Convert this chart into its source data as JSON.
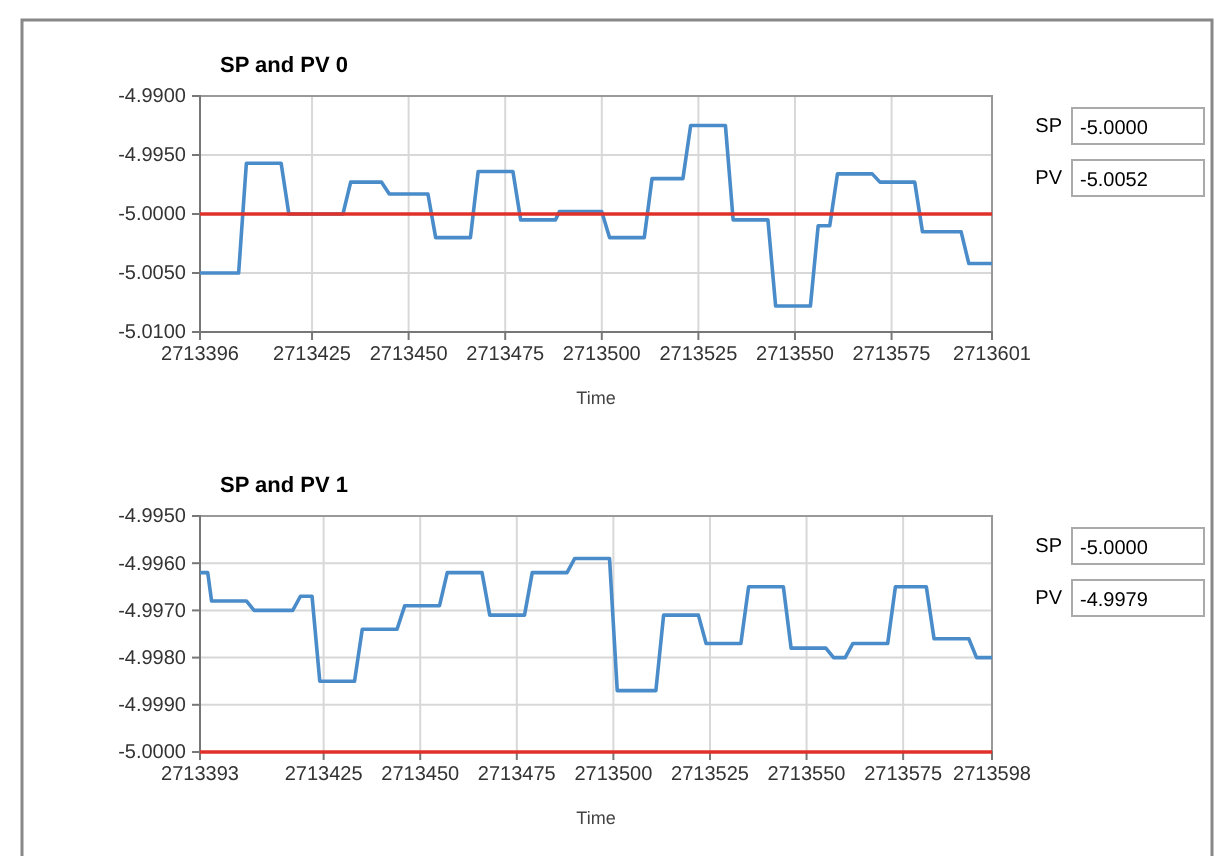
{
  "chart_data": [
    {
      "type": "line",
      "title": "SP and PV 0",
      "xlabel": "Time",
      "grid": true,
      "line_style": "solid",
      "xlim": [
        2713396,
        2713601
      ],
      "xticks": [
        2713396,
        2713425,
        2713450,
        2713475,
        2713500,
        2713525,
        2713550,
        2713575,
        2713601
      ],
      "ylim": [
        -5.01,
        -4.99
      ],
      "yticks": [
        {
          "value": -5.01,
          "label": "-5.0100"
        },
        {
          "value": -5.005,
          "label": "-5.0050"
        },
        {
          "value": -5.0,
          "label": "-5.0000"
        },
        {
          "value": -4.995,
          "label": "-4.9950"
        },
        {
          "value": -4.99,
          "label": "-4.9900"
        }
      ],
      "annotations": [
        "SP",
        "-5.0000",
        "PV",
        "-5.0052"
      ],
      "series": [
        {
          "color": "#4a8cc9",
          "x": [
            2713396,
            2713406,
            2713408,
            2713417,
            2713419,
            2713433,
            2713435,
            2713443,
            2713445,
            2713455,
            2713457,
            2713466,
            2713468,
            2713477,
            2713479,
            2713488,
            2713489,
            2713500,
            2713502,
            2713511,
            2713513,
            2713521,
            2713523,
            2713532,
            2713534,
            2713543,
            2713545,
            2713554,
            2713556,
            2713559,
            2713561,
            2713570,
            2713572,
            2713581,
            2713583,
            2713593,
            2713595,
            2713601
          ],
          "values": [
            -5.005,
            -5.005,
            -4.9957,
            -4.9957,
            -5.0,
            -5.0,
            -4.9973,
            -4.9973,
            -4.9983,
            -4.9983,
            -5.002,
            -5.002,
            -4.9964,
            -4.9964,
            -5.0005,
            -5.0005,
            -4.9998,
            -4.9998,
            -5.002,
            -5.002,
            -4.997,
            -4.997,
            -4.9925,
            -4.9925,
            -5.0005,
            -5.0005,
            -5.0078,
            -5.0078,
            -5.001,
            -5.001,
            -4.9966,
            -4.9966,
            -4.9973,
            -4.9973,
            -5.0015,
            -5.0015,
            -5.0042,
            -5.0042
          ]
        },
        {
          "color": "#e0302a",
          "x": [
            2713396,
            2713601
          ],
          "values": [
            -5.0,
            -5.0
          ]
        }
      ]
    },
    {
      "type": "line",
      "title": "SP and PV 1",
      "xlabel": "Time",
      "grid": true,
      "line_style": "solid",
      "xlim": [
        2713393,
        2713598
      ],
      "xticks": [
        2713393,
        2713425,
        2713450,
        2713475,
        2713500,
        2713525,
        2713550,
        2713575,
        2713598
      ],
      "ylim": [
        -5.0,
        -4.995
      ],
      "yticks": [
        {
          "value": -5.0,
          "label": "-5.0000"
        },
        {
          "value": -4.999,
          "label": "-4.9990"
        },
        {
          "value": -4.998,
          "label": "-4.9980"
        },
        {
          "value": -4.997,
          "label": "-4.9970"
        },
        {
          "value": -4.996,
          "label": "-4.9960"
        },
        {
          "value": -4.995,
          "label": "-4.9950"
        }
      ],
      "annotations": [
        "SP",
        "-5.0000",
        "PV",
        "-4.9979"
      ],
      "series": [
        {
          "color": "#4a8cc9",
          "x": [
            2713393,
            2713395,
            2713396,
            2713405,
            2713407,
            2713417,
            2713419,
            2713422,
            2713424,
            2713433,
            2713435,
            2713444,
            2713446,
            2713455,
            2713457,
            2713466,
            2713468,
            2713477,
            2713479,
            2713488,
            2713490,
            2713499,
            2713501,
            2713511,
            2713513,
            2713522,
            2713524,
            2713533,
            2713535,
            2713544,
            2713546,
            2713555,
            2713557,
            2713560,
            2713562,
            2713571,
            2713573,
            2713581,
            2713583,
            2713592,
            2713594,
            2713598
          ],
          "values": [
            -4.9962,
            -4.9962,
            -4.9968,
            -4.9968,
            -4.997,
            -4.997,
            -4.9967,
            -4.9967,
            -4.9985,
            -4.9985,
            -4.9974,
            -4.9974,
            -4.9969,
            -4.9969,
            -4.9962,
            -4.9962,
            -4.9971,
            -4.9971,
            -4.9962,
            -4.9962,
            -4.9959,
            -4.9959,
            -4.9987,
            -4.9987,
            -4.9971,
            -4.9971,
            -4.9977,
            -4.9977,
            -4.9965,
            -4.9965,
            -4.9978,
            -4.9978,
            -4.998,
            -4.998,
            -4.9977,
            -4.9977,
            -4.9965,
            -4.9965,
            -4.9976,
            -4.9976,
            -4.998,
            -4.998
          ]
        },
        {
          "color": "#e0302a",
          "x": [
            2713393,
            2713598
          ],
          "values": [
            -5.0,
            -5.0
          ]
        }
      ]
    }
  ]
}
